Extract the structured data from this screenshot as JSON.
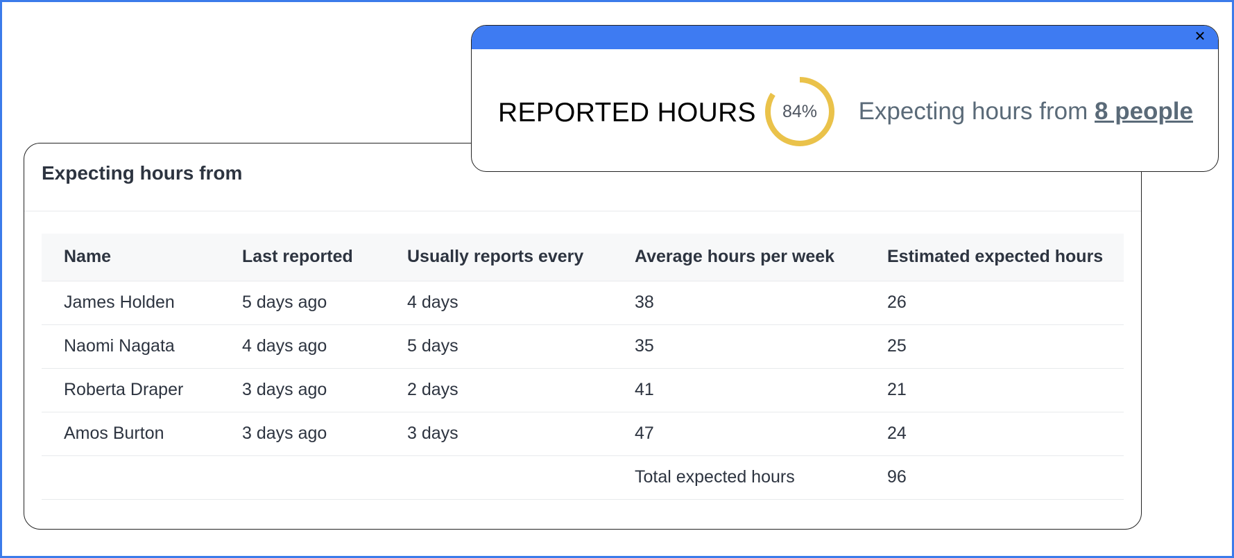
{
  "popup": {
    "title": "REPORTED HOURS",
    "progress_label": "84%",
    "progress_fraction": 0.84,
    "progress_color": "#eac24a",
    "bar_color": "#3e7bf2",
    "close_icon": "close-icon",
    "text_prefix": "Expecting hours from",
    "link_text": "8 people"
  },
  "card": {
    "title": "Expecting hours from"
  },
  "table": {
    "headers": [
      "Name",
      "Last reported",
      "Usually reports every",
      "Average hours per week",
      "Estimated expected hours"
    ],
    "rows": [
      [
        "James Holden",
        "5 days ago",
        "4 days",
        "38",
        "26"
      ],
      [
        "Naomi Nagata",
        "4 days ago",
        "5 days",
        "35",
        "25"
      ],
      [
        "Roberta Draper",
        "3 days ago",
        "2 days",
        "41",
        "21"
      ],
      [
        "Amos Burton",
        "3 days ago",
        "3 days",
        "47",
        "24"
      ]
    ],
    "total_label": "Total expected hours",
    "total_value": "96"
  }
}
